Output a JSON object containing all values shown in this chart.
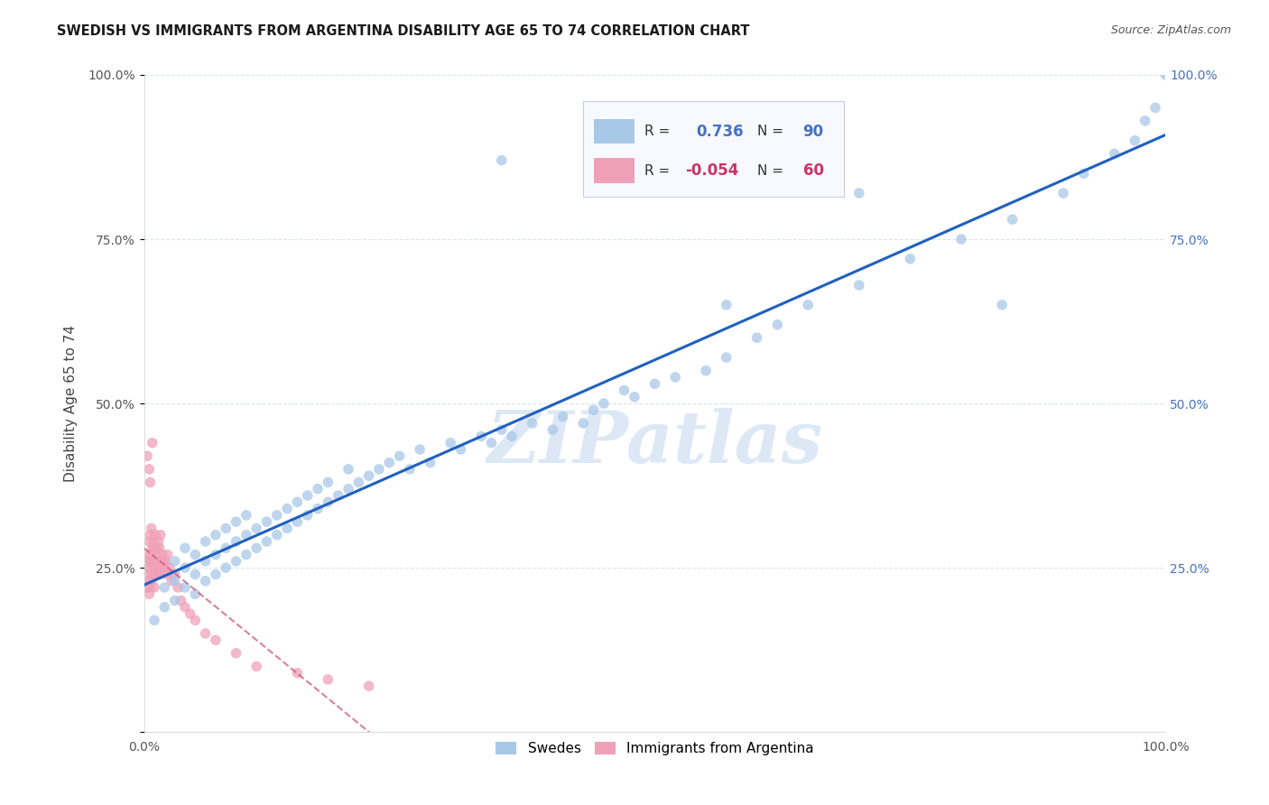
{
  "title": "SWEDISH VS IMMIGRANTS FROM ARGENTINA DISABILITY AGE 65 TO 74 CORRELATION CHART",
  "source": "Source: ZipAtlas.com",
  "ylabel": "Disability Age 65 to 74",
  "xlim": [
    0,
    1
  ],
  "ylim": [
    0,
    1
  ],
  "swedes_R": 0.736,
  "swedes_N": 90,
  "argentina_R": -0.054,
  "argentina_N": 60,
  "swedes_color": "#a8c8e8",
  "argentina_color": "#f0a0b8",
  "swedes_line_color": "#2060c0",
  "argentina_line_color": "#d06080",
  "grid_color": "#d8e0ec",
  "bg_color": "#ffffff",
  "watermark": "ZIPatlas",
  "watermark_color": "#dce8f5",
  "swedes_x": [
    0.01,
    0.02,
    0.02,
    0.03,
    0.03,
    0.03,
    0.04,
    0.04,
    0.04,
    0.05,
    0.05,
    0.05,
    0.06,
    0.06,
    0.06,
    0.07,
    0.07,
    0.07,
    0.08,
    0.08,
    0.08,
    0.09,
    0.09,
    0.09,
    0.1,
    0.1,
    0.1,
    0.11,
    0.11,
    0.12,
    0.12,
    0.13,
    0.13,
    0.14,
    0.14,
    0.15,
    0.15,
    0.16,
    0.16,
    0.17,
    0.17,
    0.18,
    0.18,
    0.19,
    0.2,
    0.2,
    0.21,
    0.22,
    0.23,
    0.24,
    0.25,
    0.26,
    0.27,
    0.28,
    0.3,
    0.31,
    0.33,
    0.34,
    0.35,
    0.36,
    0.38,
    0.4,
    0.41,
    0.43,
    0.44,
    0.45,
    0.47,
    0.48,
    0.5,
    0.52,
    0.55,
    0.57,
    0.6,
    0.62,
    0.65,
    0.7,
    0.75,
    0.8,
    0.85,
    0.9,
    0.92,
    0.95,
    0.97,
    0.98,
    0.99,
    1.0,
    0.35,
    0.7,
    0.57,
    0.84
  ],
  "swedes_y": [
    0.17,
    0.19,
    0.22,
    0.2,
    0.23,
    0.26,
    0.22,
    0.25,
    0.28,
    0.21,
    0.24,
    0.27,
    0.23,
    0.26,
    0.29,
    0.24,
    0.27,
    0.3,
    0.25,
    0.28,
    0.31,
    0.26,
    0.29,
    0.32,
    0.27,
    0.3,
    0.33,
    0.28,
    0.31,
    0.29,
    0.32,
    0.3,
    0.33,
    0.31,
    0.34,
    0.32,
    0.35,
    0.33,
    0.36,
    0.34,
    0.37,
    0.35,
    0.38,
    0.36,
    0.37,
    0.4,
    0.38,
    0.39,
    0.4,
    0.41,
    0.42,
    0.4,
    0.43,
    0.41,
    0.44,
    0.43,
    0.45,
    0.44,
    0.46,
    0.45,
    0.47,
    0.46,
    0.48,
    0.47,
    0.49,
    0.5,
    0.52,
    0.51,
    0.53,
    0.54,
    0.55,
    0.57,
    0.6,
    0.62,
    0.65,
    0.68,
    0.72,
    0.75,
    0.78,
    0.82,
    0.85,
    0.88,
    0.9,
    0.93,
    0.95,
    1.0,
    0.87,
    0.82,
    0.65,
    0.65
  ],
  "argentina_x": [
    0.002,
    0.003,
    0.003,
    0.004,
    0.004,
    0.005,
    0.005,
    0.005,
    0.006,
    0.006,
    0.006,
    0.007,
    0.007,
    0.007,
    0.008,
    0.008,
    0.008,
    0.009,
    0.009,
    0.01,
    0.01,
    0.01,
    0.011,
    0.011,
    0.012,
    0.012,
    0.013,
    0.013,
    0.014,
    0.014,
    0.015,
    0.015,
    0.016,
    0.016,
    0.017,
    0.018,
    0.019,
    0.02,
    0.021,
    0.022,
    0.023,
    0.025,
    0.027,
    0.03,
    0.033,
    0.036,
    0.04,
    0.045,
    0.05,
    0.06,
    0.07,
    0.09,
    0.11,
    0.15,
    0.18,
    0.22,
    0.003,
    0.005,
    0.006,
    0.008
  ],
  "argentina_y": [
    0.24,
    0.22,
    0.26,
    0.23,
    0.27,
    0.21,
    0.25,
    0.29,
    0.22,
    0.26,
    0.3,
    0.23,
    0.27,
    0.31,
    0.24,
    0.28,
    0.25,
    0.26,
    0.29,
    0.24,
    0.28,
    0.22,
    0.26,
    0.3,
    0.25,
    0.28,
    0.24,
    0.27,
    0.25,
    0.29,
    0.24,
    0.28,
    0.26,
    0.3,
    0.25,
    0.27,
    0.26,
    0.25,
    0.26,
    0.24,
    0.27,
    0.25,
    0.23,
    0.24,
    0.22,
    0.2,
    0.19,
    0.18,
    0.17,
    0.15,
    0.14,
    0.12,
    0.1,
    0.09,
    0.08,
    0.07,
    0.42,
    0.4,
    0.38,
    0.44
  ]
}
